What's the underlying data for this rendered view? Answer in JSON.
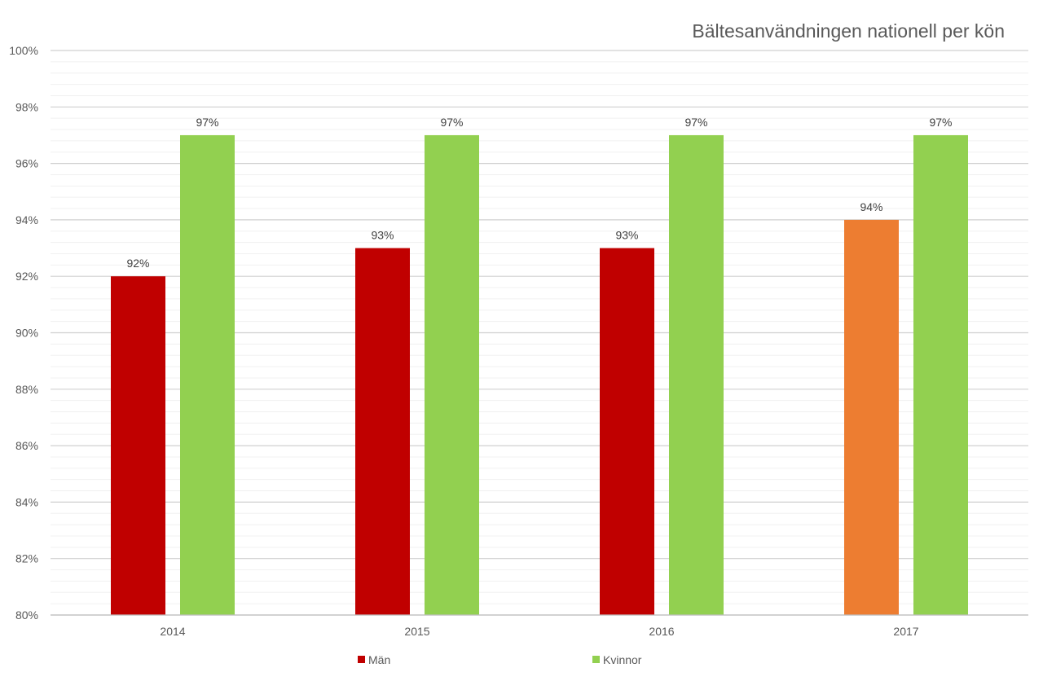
{
  "chart_data": {
    "type": "bar",
    "title": "Bältesanvändningen nationell per kön",
    "xlabel": "",
    "ylabel": "",
    "categories": [
      "2014",
      "2015",
      "2016",
      "2017"
    ],
    "series": [
      {
        "name": "Män",
        "values": [
          92,
          93,
          93,
          94
        ],
        "color": "#c00000",
        "point_colors": [
          "#c00000",
          "#c00000",
          "#c00000",
          "#ed7d31"
        ]
      },
      {
        "name": "Kvinnor",
        "values": [
          97,
          97,
          97,
          97
        ],
        "color": "#92d050"
      }
    ],
    "data_labels": [
      [
        "92%",
        "93%",
        "93%",
        "94%"
      ],
      [
        "97%",
        "97%",
        "97%",
        "97%"
      ]
    ],
    "ylim": [
      80,
      100
    ],
    "y_ticks": [
      "80%",
      "82%",
      "84%",
      "86%",
      "88%",
      "90%",
      "92%",
      "94%",
      "96%",
      "98%",
      "100%"
    ],
    "y_tick_values": [
      80,
      82,
      84,
      86,
      88,
      90,
      92,
      94,
      96,
      98,
      100
    ],
    "minor_gridline_step": 0.4,
    "grid": true,
    "legend": "bottom"
  }
}
